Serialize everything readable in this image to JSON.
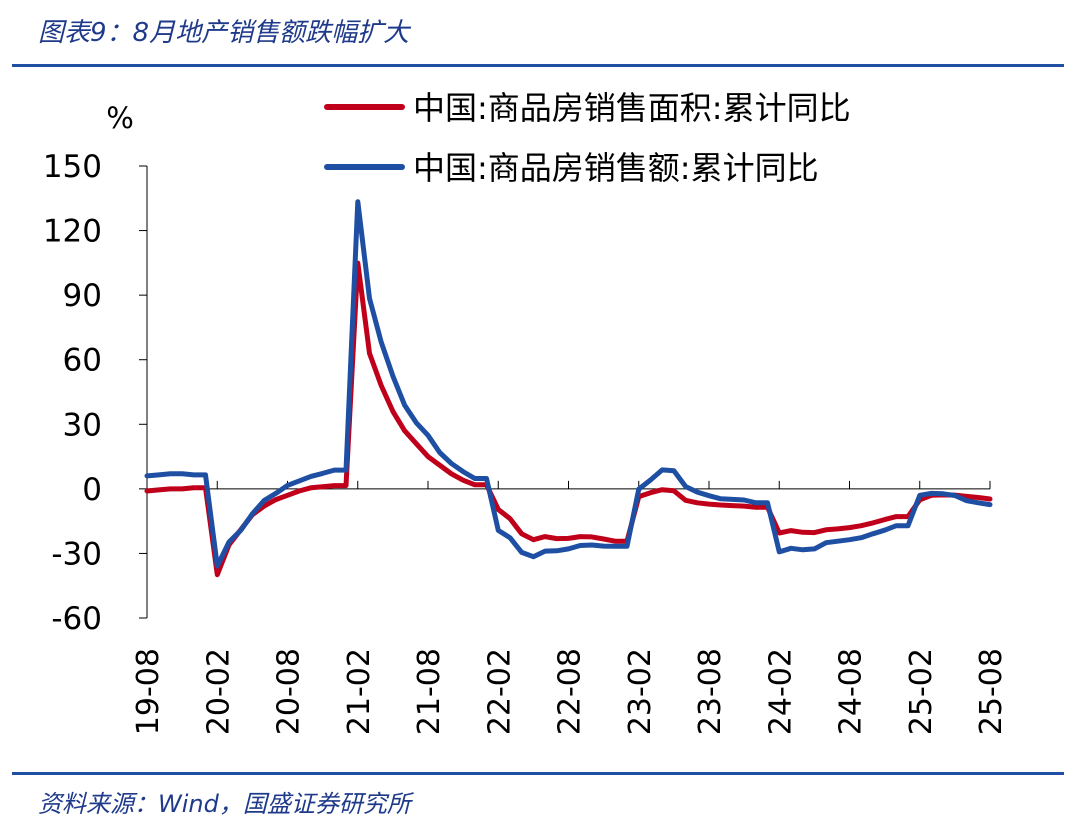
{
  "figure": {
    "title": "图表9：8月地产销售额跌幅扩大",
    "source": "资料来源：Wind，国盛证券研究所"
  },
  "chart_data": {
    "type": "line",
    "ylabel": "%",
    "ylim": [
      -60,
      150
    ],
    "yticks": [
      150,
      120,
      90,
      60,
      30,
      0,
      -30,
      -60
    ],
    "ytick_labels": [
      "150",
      "120",
      "90",
      "60",
      "30",
      "0",
      "-30",
      "-60"
    ],
    "xlim": [
      "2019-08",
      "2025-08"
    ],
    "xticks": [
      "19-08",
      "20-02",
      "20-08",
      "21-02",
      "21-08",
      "22-02",
      "22-08",
      "23-02",
      "23-08",
      "24-02",
      "24-08",
      "25-02",
      "25-08"
    ],
    "legend_position": "top-right",
    "grid": false,
    "x": [
      "2019-08",
      "2019-09",
      "2019-10",
      "2019-11",
      "2019-12",
      "2020-01",
      "2020-02",
      "2020-03",
      "2020-04",
      "2020-05",
      "2020-06",
      "2020-07",
      "2020-08",
      "2020-09",
      "2020-10",
      "2020-11",
      "2020-12",
      "2021-01",
      "2021-02",
      "2021-03",
      "2021-04",
      "2021-05",
      "2021-06",
      "2021-07",
      "2021-08",
      "2021-09",
      "2021-10",
      "2021-11",
      "2021-12",
      "2022-01",
      "2022-02",
      "2022-03",
      "2022-04",
      "2022-05",
      "2022-06",
      "2022-07",
      "2022-08",
      "2022-09",
      "2022-10",
      "2022-11",
      "2022-12",
      "2023-01",
      "2023-02",
      "2023-03",
      "2023-04",
      "2023-05",
      "2023-06",
      "2023-07",
      "2023-08",
      "2023-09",
      "2023-10",
      "2023-11",
      "2023-12",
      "2024-01",
      "2024-02",
      "2024-03",
      "2024-04",
      "2024-05",
      "2024-06",
      "2024-07",
      "2024-08",
      "2024-09",
      "2024-10",
      "2024-11",
      "2024-12",
      "2025-01",
      "2025-02",
      "2025-03",
      "2025-04",
      "2025-05",
      "2025-06",
      "2025-07",
      "2025-08"
    ],
    "series": [
      {
        "name": "中国:商品房销售面积:累计同比",
        "color": "#c0001a",
        "values": [
          -1,
          -0.5,
          0,
          0,
          0.5,
          0.5,
          -39.9,
          -26,
          -19,
          -12,
          -8,
          -5,
          -3,
          -1,
          0.5,
          1,
          1.5,
          1.5,
          104.9,
          63,
          48,
          36,
          27,
          21,
          15,
          11,
          7,
          4,
          1.9,
          1.9,
          -9.6,
          -13.8,
          -20.9,
          -23.6,
          -22.2,
          -23.1,
          -23,
          -22.2,
          -22.3,
          -23.3,
          -24.3,
          -24.3,
          -3.6,
          -1.8,
          -0.4,
          -0.9,
          -5.3,
          -6.5,
          -7.1,
          -7.5,
          -7.8,
          -8,
          -8.5,
          -8.5,
          -20.5,
          -19.4,
          -20.2,
          -20.3,
          -19,
          -18.6,
          -18,
          -17.1,
          -15.8,
          -14.3,
          -12.9,
          -12.9,
          -5.1,
          -3,
          -2.8,
          -2.9,
          -3.5,
          -4,
          -4.7
        ]
      },
      {
        "name": "中国:商品房销售额:累计同比",
        "color": "#1f4fa3",
        "values": [
          6,
          6.5,
          7,
          7,
          6.5,
          6.5,
          -35.9,
          -24.7,
          -19.3,
          -11.6,
          -5.4,
          -2.1,
          1.6,
          3.7,
          5.8,
          7.2,
          8.7,
          8.7,
          133.4,
          88.5,
          68.2,
          52.4,
          38.9,
          30.7,
          24.9,
          16.9,
          11.8,
          8,
          4.8,
          4.8,
          -19.3,
          -22.7,
          -29.5,
          -31.5,
          -28.9,
          -28.8,
          -27.9,
          -26.3,
          -26.1,
          -26.6,
          -26.7,
          -26.7,
          -0.1,
          4.1,
          8.8,
          8.4,
          1.1,
          -1.5,
          -3.2,
          -4.6,
          -4.9,
          -5.2,
          -6.5,
          -6.5,
          -29.3,
          -27.6,
          -28.3,
          -27.9,
          -25,
          -24.3,
          -23.6,
          -22.7,
          -20.9,
          -19.2,
          -17.1,
          -17.1,
          -3,
          -2.1,
          -2.3,
          -3.1,
          -5.5,
          -6.5,
          -7.3
        ]
      }
    ]
  }
}
